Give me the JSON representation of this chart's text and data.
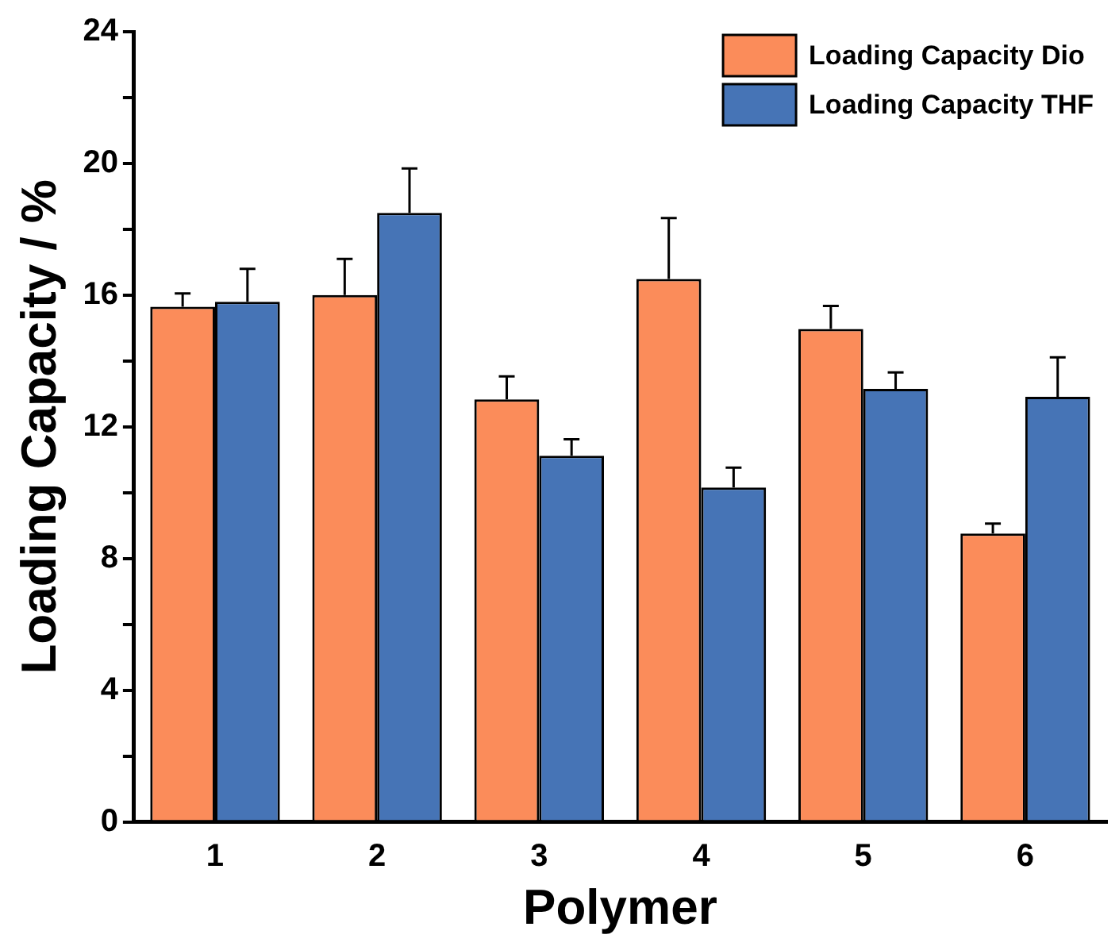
{
  "chart_data": {
    "type": "bar",
    "xlabel": "Polymer",
    "ylabel": "Loading Capacity / %",
    "categories": [
      "1",
      "2",
      "3",
      "4",
      "5",
      "6"
    ],
    "series": [
      {
        "name": "Loading Capacity Dio",
        "color": "#fb8c5a",
        "values": [
          15.65,
          16.0,
          12.83,
          16.49,
          14.97,
          8.76
        ],
        "errors": [
          [
            15.65,
            16.05
          ],
          [
            16.0,
            17.1
          ],
          [
            12.83,
            13.53
          ],
          [
            16.49,
            18.34
          ],
          [
            14.97,
            15.67
          ],
          [
            8.76,
            9.06
          ]
        ]
      },
      {
        "name": "Loading Capacity THF",
        "color": "#4674b6",
        "values": [
          15.8,
          18.5,
          11.12,
          10.16,
          13.15,
          12.91
        ],
        "errors": [
          [
            15.8,
            16.8
          ],
          [
            18.5,
            19.85
          ],
          [
            11.12,
            11.62
          ],
          [
            10.16,
            10.76
          ],
          [
            13.15,
            13.65
          ],
          [
            12.91,
            14.11
          ]
        ]
      }
    ],
    "ylim": [
      0,
      24
    ],
    "yticks": [
      0,
      {
        "value": 2,
        "label": null
      },
      4,
      {
        "value": 6,
        "label": null
      },
      8,
      {
        "value": 10,
        "label": null
      },
      12,
      {
        "value": 14,
        "label": null
      },
      16,
      {
        "value": 18,
        "label": null
      },
      20,
      {
        "value": 22,
        "label": null
      },
      24
    ],
    "grid": false,
    "legend": "top right"
  }
}
